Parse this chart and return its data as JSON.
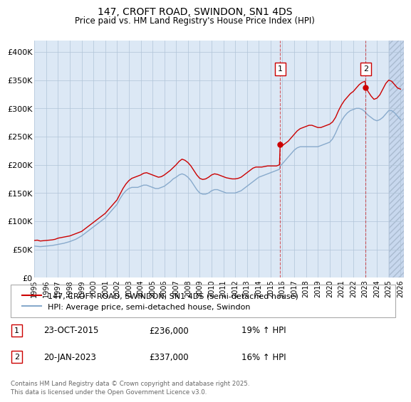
{
  "title": "147, CROFT ROAD, SWINDON, SN1 4DS",
  "subtitle": "Price paid vs. HM Land Registry's House Price Index (HPI)",
  "ylim": [
    0,
    420000
  ],
  "yticks": [
    0,
    50000,
    100000,
    150000,
    200000,
    250000,
    300000,
    350000,
    400000
  ],
  "ytick_labels": [
    "£0",
    "£50K",
    "£100K",
    "£150K",
    "£200K",
    "£250K",
    "£300K",
    "£350K",
    "£400K"
  ],
  "xmin": 1995.0,
  "xmax": 2026.3,
  "background_color": "#dce8f5",
  "future_shade_color": "#c8d8ee",
  "grid_color": "#b0c4d8",
  "red_color": "#cc0000",
  "blue_color": "#88aacc",
  "sale1_x": 2015.81,
  "sale1_y": 236000,
  "sale2_x": 2023.05,
  "sale2_y": 337000,
  "future_start": 2025.0,
  "legend_label_red": "147, CROFT ROAD, SWINDON, SN1 4DS (semi-detached house)",
  "legend_label_blue": "HPI: Average price, semi-detached house, Swindon",
  "sale1_date": "23-OCT-2015",
  "sale1_price": "£236,000",
  "sale1_hpi": "19% ↑ HPI",
  "sale2_date": "20-JAN-2023",
  "sale2_price": "£337,000",
  "sale2_hpi": "16% ↑ HPI",
  "footer": "Contains HM Land Registry data © Crown copyright and database right 2025.\nThis data is licensed under the Open Government Licence v3.0.",
  "hpi_red": [
    [
      1995.0,
      66000
    ],
    [
      1995.25,
      66500
    ],
    [
      1995.5,
      65000
    ],
    [
      1995.75,
      65500
    ],
    [
      1996.0,
      66000
    ],
    [
      1996.25,
      66500
    ],
    [
      1996.5,
      67000
    ],
    [
      1996.75,
      68000
    ],
    [
      1997.0,
      70000
    ],
    [
      1997.25,
      71000
    ],
    [
      1997.5,
      72000
    ],
    [
      1997.75,
      73000
    ],
    [
      1998.0,
      74000
    ],
    [
      1998.25,
      76000
    ],
    [
      1998.5,
      78000
    ],
    [
      1998.75,
      80000
    ],
    [
      1999.0,
      82000
    ],
    [
      1999.25,
      86000
    ],
    [
      1999.5,
      90000
    ],
    [
      1999.75,
      94000
    ],
    [
      2000.0,
      98000
    ],
    [
      2000.25,
      102000
    ],
    [
      2000.5,
      106000
    ],
    [
      2000.75,
      110000
    ],
    [
      2001.0,
      114000
    ],
    [
      2001.25,
      120000
    ],
    [
      2001.5,
      126000
    ],
    [
      2001.75,
      132000
    ],
    [
      2002.0,
      138000
    ],
    [
      2002.25,
      148000
    ],
    [
      2002.5,
      158000
    ],
    [
      2002.75,
      166000
    ],
    [
      2003.0,
      172000
    ],
    [
      2003.25,
      176000
    ],
    [
      2003.5,
      178000
    ],
    [
      2003.75,
      180000
    ],
    [
      2004.0,
      182000
    ],
    [
      2004.25,
      185000
    ],
    [
      2004.5,
      186000
    ],
    [
      2004.75,
      184000
    ],
    [
      2005.0,
      182000
    ],
    [
      2005.25,
      180000
    ],
    [
      2005.5,
      178000
    ],
    [
      2005.75,
      179000
    ],
    [
      2006.0,
      182000
    ],
    [
      2006.25,
      186000
    ],
    [
      2006.5,
      190000
    ],
    [
      2006.75,
      195000
    ],
    [
      2007.0,
      200000
    ],
    [
      2007.25,
      206000
    ],
    [
      2007.5,
      210000
    ],
    [
      2007.75,
      208000
    ],
    [
      2008.0,
      204000
    ],
    [
      2008.25,
      198000
    ],
    [
      2008.5,
      190000
    ],
    [
      2008.75,
      182000
    ],
    [
      2009.0,
      176000
    ],
    [
      2009.25,
      174000
    ],
    [
      2009.5,
      175000
    ],
    [
      2009.75,
      178000
    ],
    [
      2010.0,
      182000
    ],
    [
      2010.25,
      184000
    ],
    [
      2010.5,
      183000
    ],
    [
      2010.75,
      181000
    ],
    [
      2011.0,
      179000
    ],
    [
      2011.25,
      177000
    ],
    [
      2011.5,
      176000
    ],
    [
      2011.75,
      175000
    ],
    [
      2012.0,
      175000
    ],
    [
      2012.25,
      176000
    ],
    [
      2012.5,
      178000
    ],
    [
      2012.75,
      182000
    ],
    [
      2013.0,
      186000
    ],
    [
      2013.25,
      190000
    ],
    [
      2013.5,
      194000
    ],
    [
      2013.75,
      196000
    ],
    [
      2014.0,
      196000
    ],
    [
      2014.25,
      196000
    ],
    [
      2014.5,
      197000
    ],
    [
      2014.75,
      198000
    ],
    [
      2015.0,
      198000
    ],
    [
      2015.25,
      198000
    ],
    [
      2015.5,
      198000
    ],
    [
      2015.75,
      200000
    ],
    [
      2015.81,
      236000
    ],
    [
      2016.0,
      234000
    ],
    [
      2016.25,
      238000
    ],
    [
      2016.5,
      242000
    ],
    [
      2016.75,
      248000
    ],
    [
      2017.0,
      254000
    ],
    [
      2017.25,
      260000
    ],
    [
      2017.5,
      264000
    ],
    [
      2017.75,
      266000
    ],
    [
      2018.0,
      268000
    ],
    [
      2018.25,
      270000
    ],
    [
      2018.5,
      270000
    ],
    [
      2018.75,
      268000
    ],
    [
      2019.0,
      266000
    ],
    [
      2019.25,
      266000
    ],
    [
      2019.5,
      268000
    ],
    [
      2019.75,
      270000
    ],
    [
      2020.0,
      272000
    ],
    [
      2020.25,
      276000
    ],
    [
      2020.5,
      284000
    ],
    [
      2020.75,
      296000
    ],
    [
      2021.0,
      306000
    ],
    [
      2021.25,
      314000
    ],
    [
      2021.5,
      320000
    ],
    [
      2021.75,
      326000
    ],
    [
      2022.0,
      330000
    ],
    [
      2022.25,
      336000
    ],
    [
      2022.5,
      342000
    ],
    [
      2022.75,
      346000
    ],
    [
      2023.0,
      348000
    ],
    [
      2023.05,
      337000
    ],
    [
      2023.25,
      330000
    ],
    [
      2023.5,
      322000
    ],
    [
      2023.75,
      316000
    ],
    [
      2024.0,
      318000
    ],
    [
      2024.25,
      324000
    ],
    [
      2024.5,
      334000
    ],
    [
      2024.75,
      344000
    ],
    [
      2025.0,
      350000
    ],
    [
      2025.25,
      348000
    ],
    [
      2025.5,
      342000
    ],
    [
      2025.75,
      336000
    ],
    [
      2026.0,
      334000
    ]
  ],
  "hpi_blue": [
    [
      1995.0,
      56000
    ],
    [
      1995.25,
      55500
    ],
    [
      1995.5,
      55000
    ],
    [
      1995.75,
      55500
    ],
    [
      1996.0,
      56000
    ],
    [
      1996.25,
      56500
    ],
    [
      1996.5,
      57000
    ],
    [
      1996.75,
      58000
    ],
    [
      1997.0,
      59000
    ],
    [
      1997.25,
      60000
    ],
    [
      1997.5,
      61000
    ],
    [
      1997.75,
      62500
    ],
    [
      1998.0,
      64000
    ],
    [
      1998.25,
      66000
    ],
    [
      1998.5,
      68000
    ],
    [
      1998.75,
      71000
    ],
    [
      1999.0,
      74000
    ],
    [
      1999.25,
      78000
    ],
    [
      1999.5,
      82000
    ],
    [
      1999.75,
      86000
    ],
    [
      2000.0,
      90000
    ],
    [
      2000.25,
      94000
    ],
    [
      2000.5,
      98000
    ],
    [
      2000.75,
      102000
    ],
    [
      2001.0,
      106000
    ],
    [
      2001.25,
      112000
    ],
    [
      2001.5,
      118000
    ],
    [
      2001.75,
      124000
    ],
    [
      2002.0,
      130000
    ],
    [
      2002.25,
      140000
    ],
    [
      2002.5,
      148000
    ],
    [
      2002.75,
      154000
    ],
    [
      2003.0,
      158000
    ],
    [
      2003.25,
      160000
    ],
    [
      2003.5,
      160000
    ],
    [
      2003.75,
      160000
    ],
    [
      2004.0,
      162000
    ],
    [
      2004.25,
      164000
    ],
    [
      2004.5,
      164000
    ],
    [
      2004.75,
      162000
    ],
    [
      2005.0,
      160000
    ],
    [
      2005.25,
      158000
    ],
    [
      2005.5,
      158000
    ],
    [
      2005.75,
      160000
    ],
    [
      2006.0,
      162000
    ],
    [
      2006.25,
      166000
    ],
    [
      2006.5,
      170000
    ],
    [
      2006.75,
      175000
    ],
    [
      2007.0,
      178000
    ],
    [
      2007.25,
      182000
    ],
    [
      2007.5,
      184000
    ],
    [
      2007.75,
      182000
    ],
    [
      2008.0,
      178000
    ],
    [
      2008.25,
      172000
    ],
    [
      2008.5,
      164000
    ],
    [
      2008.75,
      156000
    ],
    [
      2009.0,
      150000
    ],
    [
      2009.25,
      148000
    ],
    [
      2009.5,
      148000
    ],
    [
      2009.75,
      150000
    ],
    [
      2010.0,
      154000
    ],
    [
      2010.25,
      156000
    ],
    [
      2010.5,
      156000
    ],
    [
      2010.75,
      154000
    ],
    [
      2011.0,
      152000
    ],
    [
      2011.25,
      150000
    ],
    [
      2011.5,
      150000
    ],
    [
      2011.75,
      150000
    ],
    [
      2012.0,
      150000
    ],
    [
      2012.25,
      152000
    ],
    [
      2012.5,
      154000
    ],
    [
      2012.75,
      158000
    ],
    [
      2013.0,
      162000
    ],
    [
      2013.25,
      166000
    ],
    [
      2013.5,
      170000
    ],
    [
      2013.75,
      174000
    ],
    [
      2014.0,
      178000
    ],
    [
      2014.25,
      180000
    ],
    [
      2014.5,
      182000
    ],
    [
      2014.75,
      184000
    ],
    [
      2015.0,
      186000
    ],
    [
      2015.25,
      188000
    ],
    [
      2015.5,
      190000
    ],
    [
      2015.75,
      192000
    ],
    [
      2015.81,
      198000
    ],
    [
      2016.0,
      202000
    ],
    [
      2016.25,
      208000
    ],
    [
      2016.5,
      214000
    ],
    [
      2016.75,
      220000
    ],
    [
      2017.0,
      226000
    ],
    [
      2017.25,
      230000
    ],
    [
      2017.5,
      232000
    ],
    [
      2017.75,
      232000
    ],
    [
      2018.0,
      232000
    ],
    [
      2018.25,
      232000
    ],
    [
      2018.5,
      232000
    ],
    [
      2018.75,
      232000
    ],
    [
      2019.0,
      232000
    ],
    [
      2019.25,
      234000
    ],
    [
      2019.5,
      236000
    ],
    [
      2019.75,
      238000
    ],
    [
      2020.0,
      240000
    ],
    [
      2020.25,
      246000
    ],
    [
      2020.5,
      256000
    ],
    [
      2020.75,
      268000
    ],
    [
      2021.0,
      278000
    ],
    [
      2021.25,
      286000
    ],
    [
      2021.5,
      292000
    ],
    [
      2021.75,
      296000
    ],
    [
      2022.0,
      298000
    ],
    [
      2022.25,
      300000
    ],
    [
      2022.5,
      300000
    ],
    [
      2022.75,
      298000
    ],
    [
      2023.0,
      294000
    ],
    [
      2023.05,
      292000
    ],
    [
      2023.25,
      288000
    ],
    [
      2023.5,
      284000
    ],
    [
      2023.75,
      280000
    ],
    [
      2024.0,
      278000
    ],
    [
      2024.25,
      280000
    ],
    [
      2024.5,
      284000
    ],
    [
      2024.75,
      290000
    ],
    [
      2025.0,
      296000
    ],
    [
      2025.25,
      296000
    ],
    [
      2025.5,
      292000
    ],
    [
      2025.75,
      286000
    ],
    [
      2026.0,
      280000
    ]
  ]
}
